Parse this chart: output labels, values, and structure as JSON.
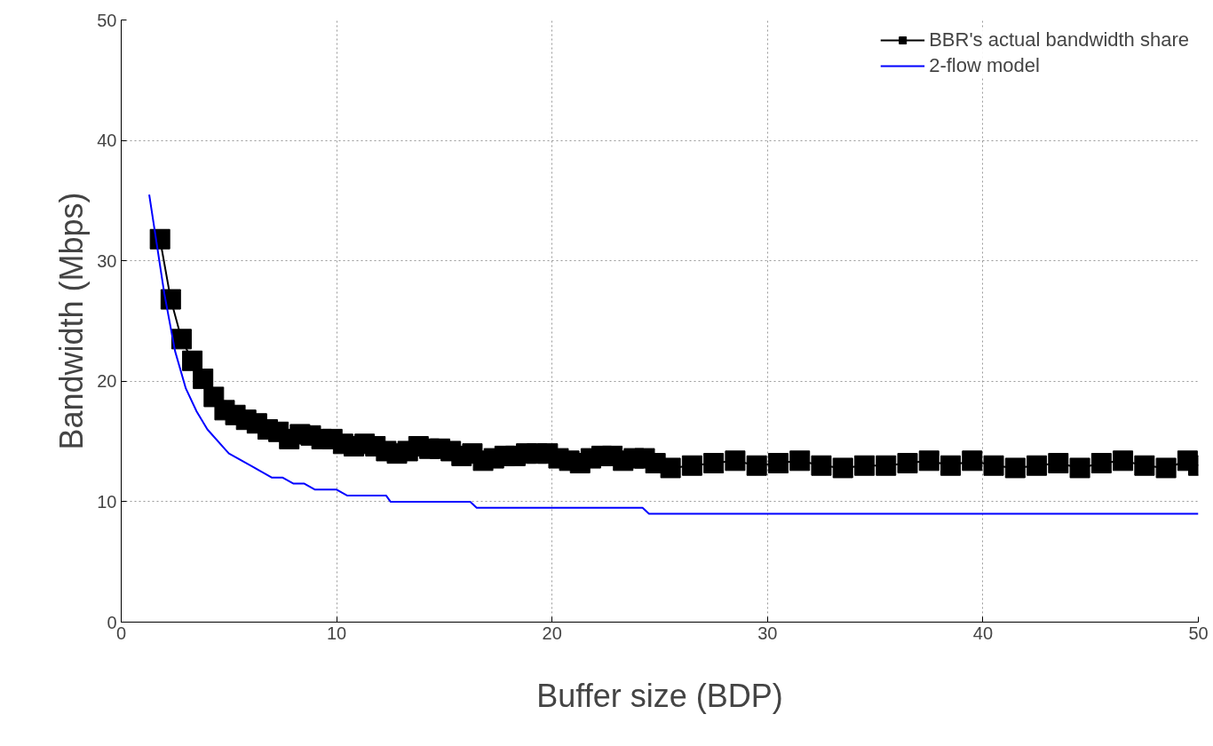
{
  "chart_data": {
    "type": "line",
    "xlabel": "Buffer size (BDP)",
    "ylabel": "Bandwidth (Mbps)",
    "xlim": [
      0,
      50
    ],
    "ylim": [
      0,
      50
    ],
    "xticks": [
      0,
      10,
      20,
      30,
      40,
      50
    ],
    "yticks": [
      0,
      10,
      20,
      30,
      40,
      50
    ],
    "grid": true,
    "legend": "top right",
    "series": [
      {
        "name": "BBR's actual bandwidth share",
        "color": "#000000",
        "marker": "square",
        "x": [
          1.8,
          2.3,
          2.8,
          3.3,
          3.8,
          4.3,
          4.8,
          5.3,
          5.8,
          6.3,
          6.8,
          7.3,
          7.8,
          8.3,
          8.8,
          9.3,
          9.8,
          10.3,
          10.8,
          11.3,
          11.8,
          12.3,
          12.8,
          13.3,
          13.8,
          14.3,
          14.8,
          15.3,
          15.8,
          16.3,
          16.8,
          17.3,
          17.8,
          18.3,
          18.8,
          19.3,
          19.8,
          20.3,
          20.8,
          21.3,
          21.8,
          22.3,
          22.8,
          23.3,
          23.8,
          24.3,
          24.8,
          25.5,
          26.5,
          27.5,
          28.5,
          29.5,
          30.5,
          31.5,
          32.5,
          33.5,
          34.5,
          35.5,
          36.5,
          37.5,
          38.5,
          39.5,
          40.5,
          41.5,
          42.5,
          43.5,
          44.5,
          45.5,
          46.5,
          47.5,
          48.5,
          49.5,
          50
        ],
        "values": [
          31.8,
          26.8,
          23.5,
          21.7,
          20.2,
          18.7,
          17.6,
          17.2,
          16.8,
          16.5,
          16.0,
          15.8,
          15.2,
          15.6,
          15.5,
          15.2,
          15.2,
          14.8,
          14.6,
          14.8,
          14.6,
          14.2,
          14.0,
          14.2,
          14.6,
          14.4,
          14.4,
          14.2,
          13.8,
          14.0,
          13.4,
          13.6,
          13.8,
          13.8,
          14.0,
          14.0,
          14.0,
          13.6,
          13.4,
          13.2,
          13.6,
          13.8,
          13.8,
          13.4,
          13.6,
          13.6,
          13.2,
          12.8,
          13.0,
          13.2,
          13.4,
          13.0,
          13.2,
          13.4,
          13.0,
          12.8,
          13.0,
          13.0,
          13.2,
          13.4,
          13.0,
          13.4,
          13.0,
          12.8,
          13.0,
          13.2,
          12.8,
          13.2,
          13.4,
          13.0,
          12.8,
          13.4,
          13.0
        ]
      },
      {
        "name": "2-flow model",
        "color": "#0000ff",
        "marker": "none",
        "x": [
          1.3,
          2,
          2.5,
          3,
          3.5,
          4,
          5,
          6,
          7,
          7.5,
          8,
          8.5,
          9,
          10,
          10.5,
          12.3,
          12.5,
          16.2,
          16.5,
          24.2,
          24.5,
          50
        ],
        "values": [
          35.5,
          27.3,
          22.5,
          19.4,
          17.5,
          16,
          14,
          13,
          12,
          12,
          11.5,
          11.5,
          11,
          11,
          10.5,
          10.5,
          10,
          10,
          9.5,
          9.5,
          9,
          9
        ]
      }
    ]
  }
}
